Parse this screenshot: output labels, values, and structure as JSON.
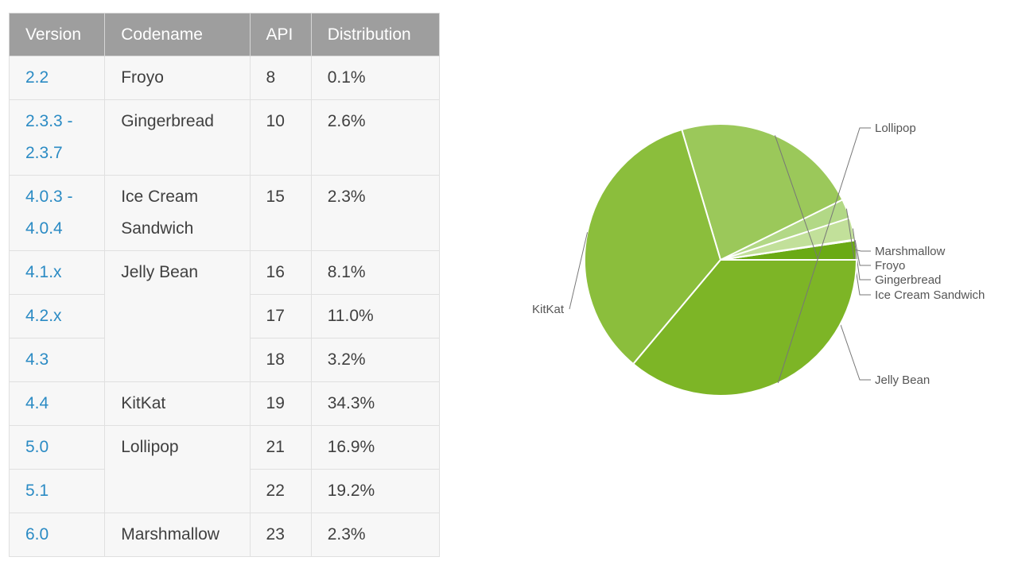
{
  "table": {
    "headers": [
      "Version",
      "Codename",
      "API",
      "Distribution"
    ],
    "rows": [
      {
        "version": "2.2",
        "codename": "Froyo",
        "api": "8",
        "dist": "0.1%"
      },
      {
        "version": "2.3.3 - 2.3.7",
        "codename": "Gingerbread",
        "api": "10",
        "dist": "2.6%"
      },
      {
        "version": "4.0.3 - 4.0.4",
        "codename": "Ice Cream Sandwich",
        "api": "15",
        "dist": "2.3%"
      },
      {
        "version": "4.1.x",
        "codename": "Jelly Bean",
        "api": "16",
        "dist": "8.1%"
      },
      {
        "version": "4.2.x",
        "codename": "",
        "api": "17",
        "dist": "11.0%"
      },
      {
        "version": "4.3",
        "codename": "",
        "api": "18",
        "dist": "3.2%"
      },
      {
        "version": "4.4",
        "codename": "KitKat",
        "api": "19",
        "dist": "34.3%"
      },
      {
        "version": "5.0",
        "codename": "Lollipop",
        "api": "21",
        "dist": "16.9%"
      },
      {
        "version": "5.1",
        "codename": "",
        "api": "22",
        "dist": "19.2%"
      },
      {
        "version": "6.0",
        "codename": "Marshmallow",
        "api": "23",
        "dist": "2.3%"
      }
    ]
  },
  "chart_data": {
    "type": "pie",
    "title": "",
    "slices": [
      {
        "label": "Marshmallow",
        "value": 2.3,
        "color": "#6aaa14"
      },
      {
        "label": "Froyo",
        "value": 0.1,
        "color": "#d9ecbf"
      },
      {
        "label": "Gingerbread",
        "value": 2.6,
        "color": "#c2e09a"
      },
      {
        "label": "Ice Cream Sandwich",
        "value": 2.3,
        "color": "#b2d886"
      },
      {
        "label": "Jelly Bean",
        "value": 22.3,
        "color": "#9bc85a"
      },
      {
        "label": "KitKat",
        "value": 34.3,
        "color": "#8bbe3c"
      },
      {
        "label": "Lollipop",
        "value": 36.1,
        "color": "#7db526"
      }
    ]
  }
}
